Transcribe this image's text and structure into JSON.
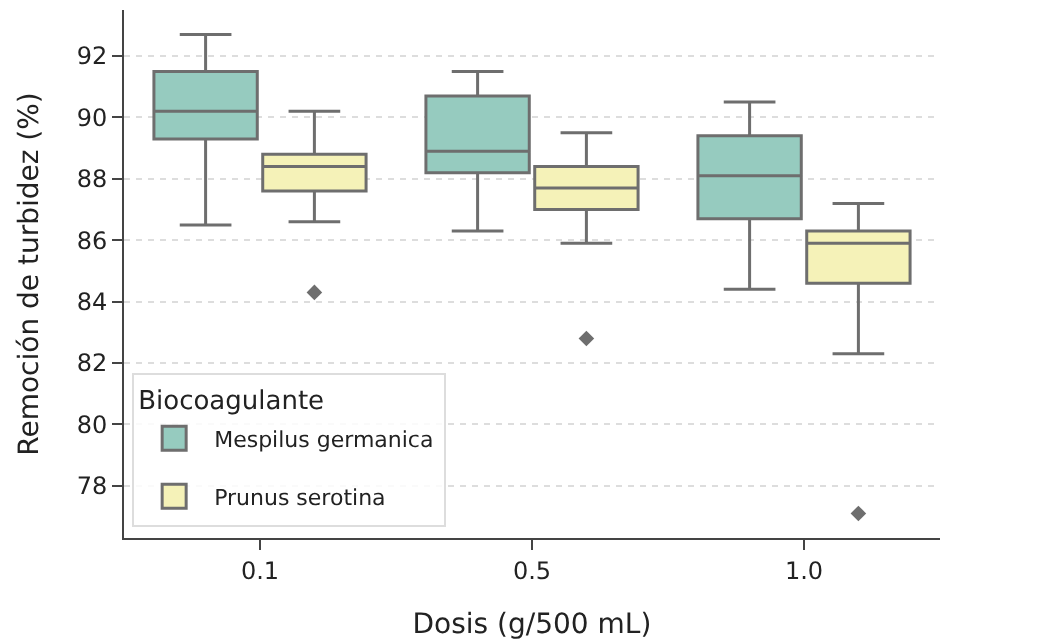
{
  "chart_data": {
    "type": "box",
    "xlabel": "Dosis (g/500 mL)",
    "ylabel": "Remoción de turbidez (%)",
    "legend_title": "Biocoagulante",
    "categories": [
      "0.1",
      "0.5",
      "1.0"
    ],
    "series": [
      {
        "name": "Mespilus germanica",
        "color": "#96cbbf",
        "boxes": [
          {
            "low": 86.5,
            "q1": 89.3,
            "median": 90.2,
            "q3": 91.5,
            "high": 92.7
          },
          {
            "low": 86.3,
            "q1": 88.2,
            "median": 88.9,
            "q3": 90.7,
            "high": 91.5
          },
          {
            "low": 84.4,
            "q1": 86.7,
            "median": 88.1,
            "q3": 89.4,
            "high": 90.5
          }
        ]
      },
      {
        "name": "Prunus serotina",
        "color": "#f5f2b8",
        "boxes": [
          {
            "low": 86.6,
            "q1": 87.6,
            "median": 88.4,
            "q3": 88.8,
            "high": 90.2,
            "outliers": [
              84.3
            ]
          },
          {
            "low": 85.9,
            "q1": 87.0,
            "median": 87.7,
            "q3": 88.4,
            "high": 89.5,
            "outliers": [
              82.8
            ]
          },
          {
            "low": 82.3,
            "q1": 84.6,
            "median": 85.9,
            "q3": 86.3,
            "high": 87.2,
            "outliers": [
              77.1
            ]
          }
        ]
      }
    ],
    "ylim": [
      76.3,
      93.5
    ],
    "yticks": [
      78,
      80,
      82,
      84,
      86,
      88,
      90,
      92
    ],
    "grid": "y",
    "legend": "bottom left",
    "marker": "diamond"
  }
}
